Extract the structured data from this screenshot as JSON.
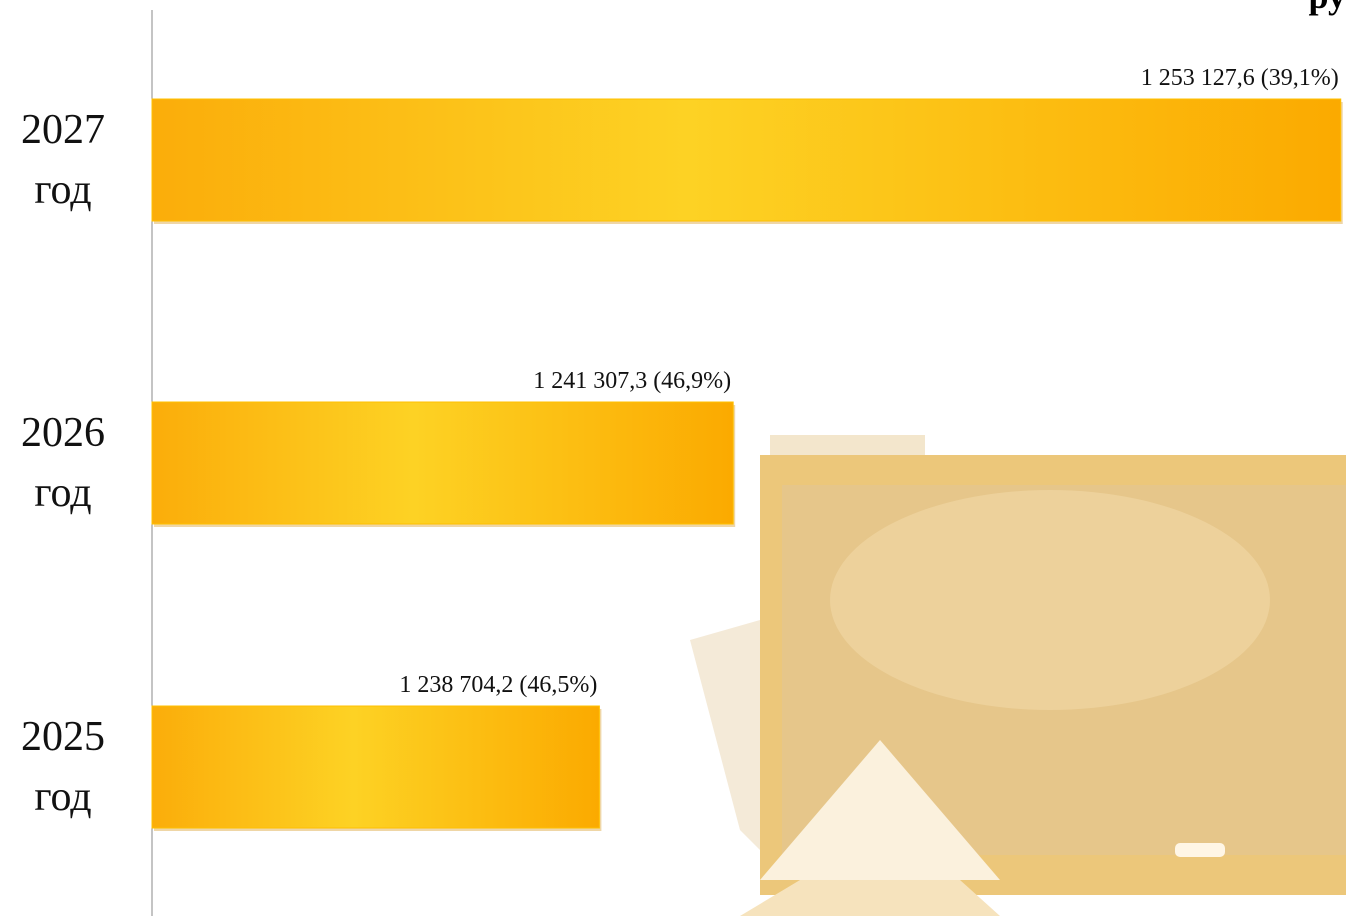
{
  "chart_data": {
    "type": "barh",
    "unit_fragment": "ру",
    "categories": [
      "2027 год",
      "2026 год",
      "2025 год"
    ],
    "values": [
      1253127.6,
      1241307.3,
      1238704.2
    ],
    "value_labels": [
      "1 253 127,6 (39,1%)",
      "1 241 307,3 (46,9%)",
      "1 238 704,2 (46,5%)"
    ],
    "xlim": [
      1230000,
      1253230
    ],
    "color": "#ffc000"
  }
}
